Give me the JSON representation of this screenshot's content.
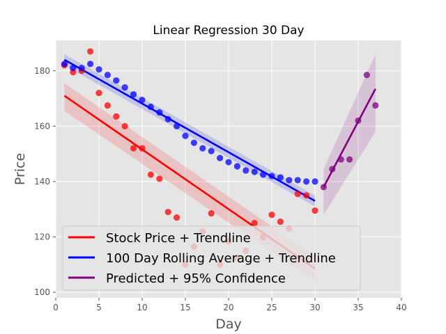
{
  "chart_data": {
    "type": "scatter",
    "title": "Linear Regression 30 Day",
    "xlabel": "Day",
    "ylabel": "Price",
    "xlim": [
      0,
      40
    ],
    "ylim": [
      98,
      191
    ],
    "xticks": [
      0,
      5,
      10,
      15,
      20,
      25,
      30,
      35,
      40
    ],
    "yticks": [
      100,
      120,
      140,
      160,
      180
    ],
    "grid": true,
    "legend_position": "lower-left",
    "series": [
      {
        "name": "Stock Price + Trendline",
        "color": "#ff0000",
        "points": [
          [
            1,
            182
          ],
          [
            2,
            179.5
          ],
          [
            3,
            180
          ],
          [
            4,
            187
          ],
          [
            5,
            172
          ],
          [
            6,
            167.5
          ],
          [
            7,
            163.5
          ],
          [
            8,
            160
          ],
          [
            9,
            152
          ],
          [
            10,
            152
          ],
          [
            11,
            142.5
          ],
          [
            12,
            141
          ],
          [
            13,
            129
          ],
          [
            14,
            127
          ],
          [
            15,
            110
          ],
          [
            16,
            116.5
          ],
          [
            17,
            122
          ],
          [
            18,
            128.5
          ],
          [
            19,
            110
          ],
          [
            20,
            118.5
          ],
          [
            21,
            112.5
          ],
          [
            22,
            115
          ],
          [
            23,
            125
          ],
          [
            24,
            120
          ],
          [
            25,
            128
          ],
          [
            26,
            125.5
          ],
          [
            27,
            123
          ],
          [
            28,
            135.5
          ],
          [
            29,
            135
          ],
          [
            30,
            129.5
          ]
        ],
        "trend": {
          "x": [
            1,
            30
          ],
          "y": [
            171,
            108.5
          ]
        },
        "band_upper": [
          175.5,
          113
        ],
        "band_lower": [
          165.5,
          104
        ]
      },
      {
        "name": "100 Day Rolling Average + Trendline",
        "color": "#0000ff",
        "points": [
          [
            1,
            182.5
          ],
          [
            2,
            181
          ],
          [
            3,
            181
          ],
          [
            4,
            182.5
          ],
          [
            5,
            180.5
          ],
          [
            6,
            178.5
          ],
          [
            7,
            176.5
          ],
          [
            8,
            174
          ],
          [
            9,
            171.5
          ],
          [
            10,
            169.5
          ],
          [
            11,
            167
          ],
          [
            12,
            165
          ],
          [
            13,
            162.5
          ],
          [
            14,
            160
          ],
          [
            15,
            156.5
          ],
          [
            16,
            154
          ],
          [
            17,
            152
          ],
          [
            18,
            151
          ],
          [
            19,
            148.5
          ],
          [
            20,
            147
          ],
          [
            21,
            145.5
          ],
          [
            22,
            144
          ],
          [
            23,
            143.5
          ],
          [
            24,
            142.5
          ],
          [
            25,
            142
          ],
          [
            26,
            141.5
          ],
          [
            27,
            140.5
          ],
          [
            28,
            140.5
          ],
          [
            29,
            140
          ],
          [
            30,
            140
          ]
        ],
        "trend": {
          "x": [
            1,
            30
          ],
          "y": [
            184,
            133
          ]
        },
        "band_upper": [
          186,
          135
        ],
        "band_lower": [
          182,
          131
        ]
      },
      {
        "name": "Predicted + 95% Confidence",
        "color": "#800080",
        "points": [
          [
            31,
            138
          ],
          [
            32,
            144.5
          ],
          [
            33,
            148
          ],
          [
            34,
            148
          ],
          [
            35,
            162
          ],
          [
            36,
            178.5
          ],
          [
            37,
            167.5
          ]
        ],
        "trend": {
          "x": [
            31,
            37
          ],
          "y": [
            138,
            173.5
          ]
        },
        "band_upper": [
          144.5,
          186
        ],
        "band_lower": [
          128,
          158
        ]
      }
    ]
  }
}
